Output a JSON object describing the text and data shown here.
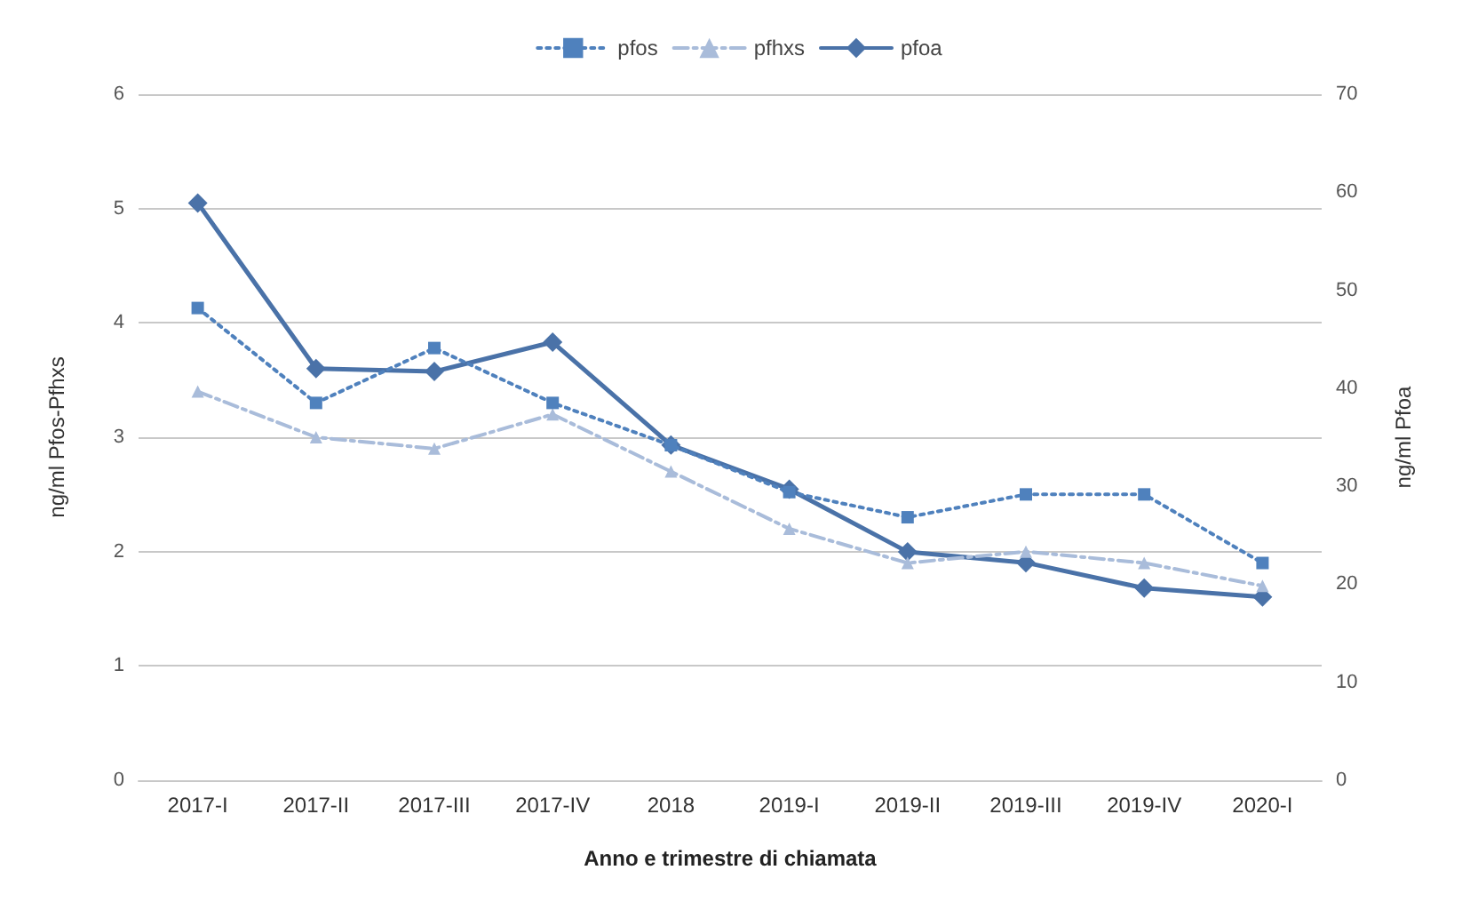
{
  "chart_data": {
    "type": "line",
    "categories": [
      "2017-I",
      "2017-II",
      "2017-III",
      "2017-IV",
      "2018",
      "2019-I",
      "2019-II",
      "2019-III",
      "2019-IV",
      "2020-I"
    ],
    "xlabel": "Anno e trimestre di chiamata",
    "ylabel": "ng/ml Pfos-Pfhxs",
    "y2label": "ng/ml Pfoa",
    "ylim": [
      0,
      6
    ],
    "yticks": [
      0,
      1,
      2,
      3,
      4,
      5,
      6
    ],
    "y2lim": [
      0,
      70
    ],
    "y2ticks": [
      0,
      10,
      20,
      30,
      40,
      50,
      60,
      70
    ],
    "grid": "y",
    "legend": "top",
    "series": [
      {
        "name": "pfos",
        "color": "#4f81bd",
        "marker": "square",
        "line_style": "dotted",
        "values": [
          4.13,
          3.3,
          3.78,
          3.3,
          2.93,
          2.52,
          2.3,
          2.5,
          2.5,
          1.9
        ]
      },
      {
        "name": "pfhxs",
        "color": "#a9bcda",
        "marker": "triangle",
        "line_style": "dashed",
        "values": [
          3.4,
          3.0,
          2.9,
          3.2,
          2.7,
          2.2,
          1.9,
          2.0,
          1.9,
          1.7
        ]
      },
      {
        "name": "pfoa",
        "color": "#4a72a8",
        "marker": "diamond",
        "line_style": "solid",
        "axis": "y2",
        "values": [
          58.9,
          42.0,
          41.7,
          44.7,
          34.2,
          29.7,
          23.3,
          22.2,
          19.6,
          18.7
        ]
      }
    ]
  }
}
